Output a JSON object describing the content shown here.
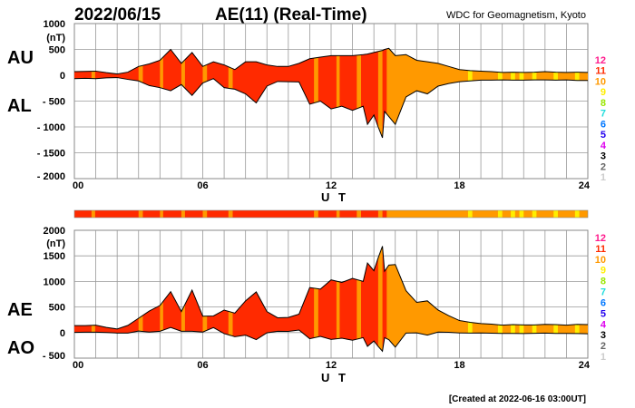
{
  "header": {
    "date": "2022/06/15",
    "title": "AE(11) (Real-Time)",
    "source": "WDC for Geomagnetism, Kyoto",
    "created": "[Created at 2022-06-16 03:00UT]"
  },
  "chart_data": [
    {
      "type": "area",
      "name": "AU/AL",
      "labels": [
        "AU",
        "AL"
      ],
      "xlabel": "U T",
      "ylabel": "(nT)",
      "xlim": [
        0,
        24
      ],
      "ylim": [
        -2000,
        1000
      ],
      "xticks": [
        "00",
        "06",
        "12",
        "18",
        "24"
      ],
      "yticks": [
        "1000",
        "500",
        "0",
        "- 500",
        "- 1000",
        "- 1500",
        "- 2000"
      ],
      "grid": true
    },
    {
      "type": "area",
      "name": "AE/AO",
      "labels": [
        "AE",
        "AO"
      ],
      "xlabel": "U T",
      "ylabel": "(nT)",
      "xlim": [
        0,
        24
      ],
      "ylim": [
        -500,
        2000
      ],
      "xticks": [
        "00",
        "06",
        "12",
        "18",
        "24"
      ],
      "yticks": [
        "2000",
        "1500",
        "1000",
        "500",
        "0",
        "- 500"
      ],
      "grid": true
    }
  ],
  "series": {
    "t": [
      0,
      0.5,
      1,
      1.5,
      2,
      2.5,
      3,
      3.5,
      4,
      4.5,
      5,
      5.5,
      6,
      6.5,
      7,
      7.5,
      8,
      8.5,
      9,
      9.5,
      10,
      10.5,
      11,
      11.5,
      12,
      12.5,
      13,
      13.5,
      13.7,
      14,
      14.2,
      14.4,
      14.5,
      14.7,
      15,
      15.5,
      16,
      16.5,
      17,
      17.5,
      18,
      18.5,
      19,
      19.5,
      20,
      20.5,
      21,
      21.5,
      22,
      22.5,
      23,
      23.5,
      24
    ],
    "AU": [
      70,
      75,
      80,
      50,
      25,
      60,
      170,
      220,
      290,
      500,
      230,
      440,
      170,
      260,
      200,
      110,
      260,
      260,
      200,
      170,
      170,
      230,
      320,
      350,
      380,
      380,
      380,
      400,
      410,
      440,
      460,
      480,
      500,
      520,
      380,
      400,
      290,
      260,
      230,
      170,
      110,
      90,
      80,
      70,
      55,
      60,
      55,
      60,
      70,
      60,
      55,
      60,
      55
    ],
    "AL": [
      -65,
      -60,
      -65,
      -50,
      -45,
      -80,
      -110,
      -200,
      -240,
      -300,
      -180,
      -390,
      -150,
      -65,
      -240,
      -270,
      -360,
      -535,
      -210,
      -120,
      -125,
      -130,
      -560,
      -500,
      -650,
      -600,
      -680,
      -600,
      -950,
      -770,
      -1000,
      -1210,
      -700,
      -800,
      -950,
      -420,
      -300,
      -360,
      -210,
      -160,
      -125,
      -110,
      -95,
      -95,
      -90,
      -95,
      -95,
      -90,
      -90,
      -95,
      -90,
      -100,
      -100
    ]
  },
  "station_count": {
    "default": 11,
    "segments": [
      {
        "from": 0.8,
        "to": 0.97,
        "n": 10
      },
      {
        "from": 3.0,
        "to": 3.2,
        "n": 10
      },
      {
        "from": 4.0,
        "to": 4.15,
        "n": 10
      },
      {
        "from": 5.0,
        "to": 5.17,
        "n": 10
      },
      {
        "from": 6.0,
        "to": 6.2,
        "n": 10
      },
      {
        "from": 7.2,
        "to": 7.4,
        "n": 10
      },
      {
        "from": 11.2,
        "to": 11.4,
        "n": 10
      },
      {
        "from": 12.25,
        "to": 12.4,
        "n": 10
      },
      {
        "from": 13.2,
        "to": 13.4,
        "n": 10
      },
      {
        "from": 14.2,
        "to": 14.4,
        "n": 10
      },
      {
        "from": 14.6,
        "to": 24,
        "n": 10
      },
      {
        "from": 18.4,
        "to": 18.6,
        "n": 9
      },
      {
        "from": 19.8,
        "to": 20.0,
        "n": 9
      },
      {
        "from": 20.4,
        "to": 20.6,
        "n": 9
      },
      {
        "from": 20.8,
        "to": 21.0,
        "n": 9
      },
      {
        "from": 21.4,
        "to": 21.6,
        "n": 9
      },
      {
        "from": 22.4,
        "to": 22.6,
        "n": 9
      },
      {
        "from": 23.4,
        "to": 23.6,
        "n": 9
      }
    ]
  },
  "legend": [
    {
      "label": "12",
      "color": "#ff1a8c"
    },
    {
      "label": "11",
      "color": "#ff2a00"
    },
    {
      "label": "10",
      "color": "#ff9900"
    },
    {
      "label": "9",
      "color": "#ffee00"
    },
    {
      "label": "8",
      "color": "#99e600"
    },
    {
      "label": "7",
      "color": "#22dddd"
    },
    {
      "label": "6",
      "color": "#0077ff"
    },
    {
      "label": "5",
      "color": "#2200ee"
    },
    {
      "label": "4",
      "color": "#dd00ee"
    },
    {
      "label": "3",
      "color": "#000000"
    },
    {
      "label": "2",
      "color": "#666666"
    },
    {
      "label": "1",
      "color": "#cccccc"
    }
  ]
}
